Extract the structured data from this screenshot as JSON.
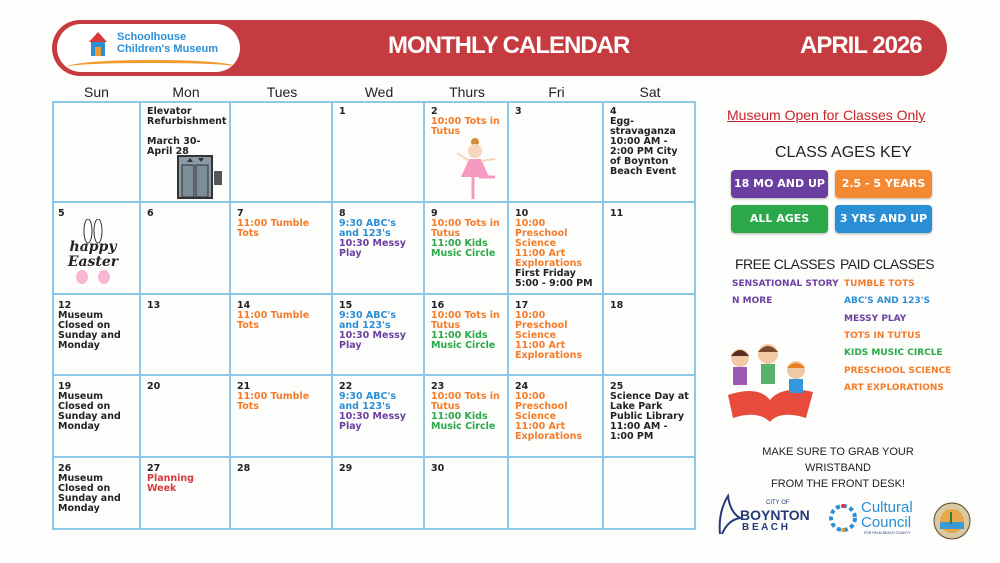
{
  "header": {
    "logo_line1": "Schoolhouse",
    "logo_line2": "Children's Museum",
    "title": "MONTHLY CALENDAR",
    "month": "APRIL 2026"
  },
  "colors": {
    "banner": "#c63b3f",
    "grid": "#8cc8ea",
    "orange": "#f47c2a",
    "blue": "#2b8fd6",
    "purple": "#6b3fa0",
    "green": "#2aa84a",
    "red": "#d63a3a",
    "dark": "#222222"
  },
  "days": [
    "Sun",
    "Mon",
    "Tues",
    "Wed",
    "Thurs",
    "Fri",
    "Sat"
  ],
  "weeks": [
    [
      {
        "date": "",
        "events": []
      },
      {
        "date": "",
        "events": [
          {
            "t": "Elevator Refurbishment",
            "c": "dark"
          },
          {
            "t": " ",
            "c": "dark"
          },
          {
            "t": "March 30- April 28",
            "c": "dark"
          }
        ],
        "icon": "elevator-icon"
      },
      {
        "date": "",
        "events": []
      },
      {
        "date": "1",
        "events": []
      },
      {
        "date": "2",
        "events": [
          {
            "t": "10:00 Tots in Tutus",
            "c": "orange"
          }
        ],
        "icon": "ballerina-icon"
      },
      {
        "date": "3",
        "events": []
      },
      {
        "date": "4",
        "events": [
          {
            "t": "Egg-stravaganza 10:00 AM - 2:00 PM City of Boynton Beach Event",
            "c": "dark"
          }
        ]
      }
    ],
    [
      {
        "date": "5",
        "events": [],
        "icon": "happy-easter-icon"
      },
      {
        "date": "6",
        "events": []
      },
      {
        "date": "7",
        "events": [
          {
            "t": "11:00 Tumble Tots",
            "c": "orange"
          }
        ]
      },
      {
        "date": "8",
        "events": [
          {
            "t": "9:30 ABC's and 123's",
            "c": "blue"
          },
          {
            "t": "10:30 Messy Play",
            "c": "purple"
          }
        ]
      },
      {
        "date": "9",
        "events": [
          {
            "t": "10:00 Tots in Tutus",
            "c": "orange"
          },
          {
            "t": "11:00 Kids Music Circle",
            "c": "green"
          }
        ]
      },
      {
        "date": "10",
        "events": [
          {
            "t": "10:00 Preschool Science",
            "c": "orange"
          },
          {
            "t": "11:00 Art Explorations",
            "c": "orange"
          },
          {
            "t": "First Friday 5:00 - 9:00 PM",
            "c": "dark"
          }
        ]
      },
      {
        "date": "11",
        "events": []
      }
    ],
    [
      {
        "date": "12",
        "events": [
          {
            "t": "Museum Closed on Sunday and Monday",
            "c": "dark"
          }
        ]
      },
      {
        "date": "13",
        "events": []
      },
      {
        "date": "14",
        "events": [
          {
            "t": "11:00 Tumble Tots",
            "c": "orange"
          }
        ]
      },
      {
        "date": "15",
        "events": [
          {
            "t": "9:30 ABC's and 123's",
            "c": "blue"
          },
          {
            "t": "10:30 Messy Play",
            "c": "purple"
          }
        ]
      },
      {
        "date": "16",
        "events": [
          {
            "t": "10:00 Tots in Tutus",
            "c": "orange"
          },
          {
            "t": "11:00 Kids Music Circle",
            "c": "green"
          }
        ]
      },
      {
        "date": "17",
        "events": [
          {
            "t": "10:00 Preschool Science",
            "c": "orange"
          },
          {
            "t": "11:00 Art Explorations",
            "c": "orange"
          }
        ]
      },
      {
        "date": "18",
        "events": []
      }
    ],
    [
      {
        "date": "19",
        "events": [
          {
            "t": "Museum Closed on Sunday and Monday",
            "c": "dark"
          }
        ]
      },
      {
        "date": "20",
        "events": []
      },
      {
        "date": "21",
        "events": [
          {
            "t": "11:00 Tumble Tots",
            "c": "orange"
          }
        ]
      },
      {
        "date": "22",
        "events": [
          {
            "t": "9:30 ABC's and 123's",
            "c": "blue"
          },
          {
            "t": "10:30 Messy Play",
            "c": "purple"
          }
        ]
      },
      {
        "date": "23",
        "events": [
          {
            "t": "10:00 Tots in Tutus",
            "c": "orange"
          },
          {
            "t": "11:00 Kids Music Circle",
            "c": "green"
          }
        ]
      },
      {
        "date": "24",
        "events": [
          {
            "t": "10:00 Preschool Science",
            "c": "orange"
          },
          {
            "t": "11:00 Art Explorations",
            "c": "orange"
          }
        ]
      },
      {
        "date": "25",
        "events": [
          {
            "t": "Science Day at Lake Park Public Library 11:00 AM - 1:00 PM",
            "c": "dark"
          }
        ]
      }
    ],
    [
      {
        "date": "26",
        "events": [
          {
            "t": "Museum Closed on Sunday and Monday",
            "c": "dark"
          }
        ]
      },
      {
        "date": "27",
        "events": [
          {
            "t": "Planning Week",
            "c": "red"
          }
        ]
      },
      {
        "date": "28",
        "events": []
      },
      {
        "date": "29",
        "events": []
      },
      {
        "date": "30",
        "events": []
      },
      {
        "date": "",
        "events": []
      },
      {
        "date": "",
        "events": []
      }
    ]
  ],
  "sidebar": {
    "notice": "Museum Open for Classes Only ",
    "key_title": "CLASS AGES KEY",
    "keys": [
      {
        "label": "18 MO AND UP",
        "color": "#6b3fa0"
      },
      {
        "label": "2.5 - 5 YEARS",
        "color": "#f38a33"
      },
      {
        "label": "ALL AGES",
        "color": "#2aa84a"
      },
      {
        "label": "3 YRS AND UP",
        "color": "#2b8fd6"
      }
    ],
    "free_title": "FREE CLASSES",
    "paid_title": "PAID CLASSES",
    "free": [
      {
        "t": "SENSATIONAL STORY",
        "c": "purple"
      },
      {
        "t": "N MORE",
        "c": "purple"
      }
    ],
    "paid": [
      {
        "t": "TUMBLE TOTS",
        "c": "orange"
      },
      {
        "t": "ABC'S AND 123'S",
        "c": "blue"
      },
      {
        "t": "MESSY PLAY",
        "c": "purple"
      },
      {
        "t": "TOTS IN TUTUS",
        "c": "orange"
      },
      {
        "t": "KIDS MUSIC CIRCLE",
        "c": "green"
      },
      {
        "t": "PRESCHOOL SCIENCE",
        "c": "orange"
      },
      {
        "t": "ART EXPLORATIONS",
        "c": "orange"
      }
    ],
    "wristband_line1": "MAKE SURE TO GRAB YOUR WRISTBAND",
    "wristband_line2": "FROM THE FRONT DESK!",
    "logos": {
      "boynton_small": "CITY OF",
      "boynton_1": "BOYNTON",
      "boynton_2": "B E A C H",
      "cultural_1": "Cultural",
      "cultural_2": "Council",
      "cultural_sub": "FOR PALM BEACH COUNTY"
    }
  }
}
